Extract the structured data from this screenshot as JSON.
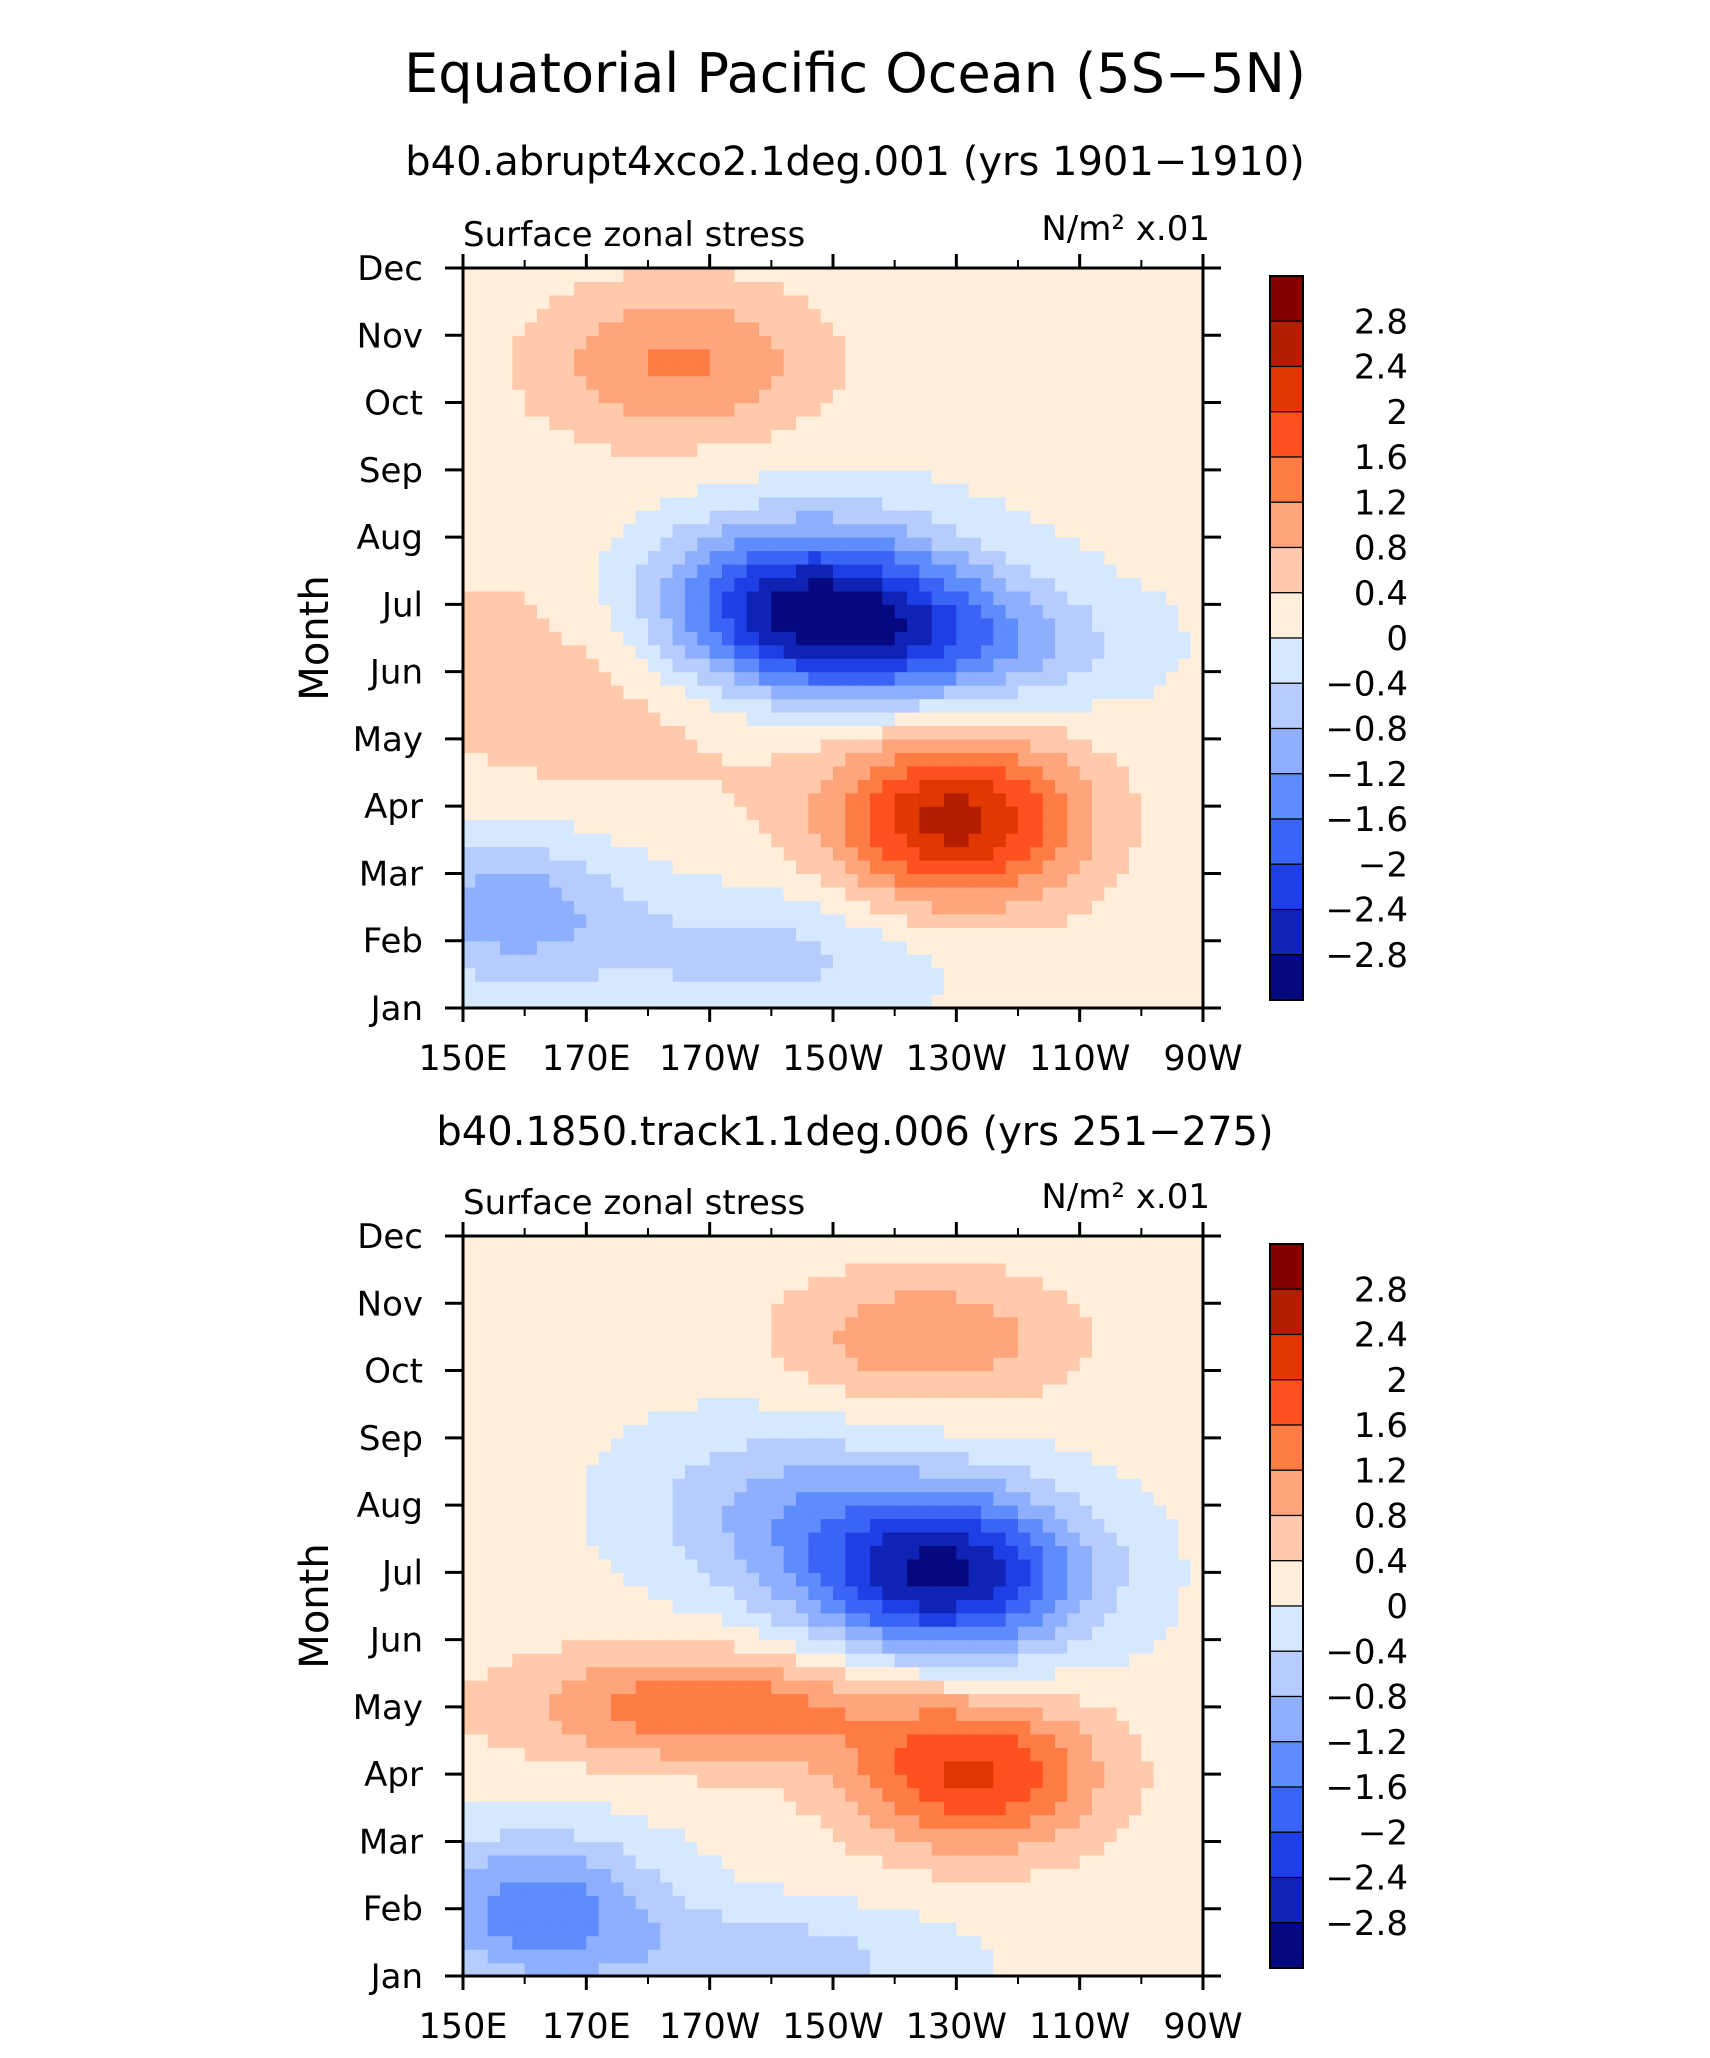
{
  "figure": {
    "title": "Equatorial Pacific Ocean (5S−5N)"
  },
  "chart_data": [
    {
      "type": "heatmap",
      "subtitle": "b40.abrupt4xco2.1deg.001 (yrs 1901−1910)",
      "left_label": "Surface zonal stress",
      "units_label": "N/m² x.01",
      "ylabel": "Month",
      "x_ticks": [
        "150E",
        "170E",
        "170W",
        "150W",
        "130W",
        "110W",
        "90W"
      ],
      "y_ticks": [
        "Jan",
        "Feb",
        "Mar",
        "Apr",
        "May",
        "Jun",
        "Jul",
        "Aug",
        "Sep",
        "Oct",
        "Nov",
        "Dec"
      ],
      "xlim": [
        150,
        270
      ],
      "ylim": [
        1,
        12
      ],
      "features": [
        {
          "lon": 205,
          "month": 7.0,
          "amp": -2.9,
          "sx": 18,
          "sy": 0.9
        },
        {
          "lon": 225,
          "month": 6.4,
          "amp": -1.4,
          "sx": 20,
          "sy": 0.7
        },
        {
          "lon": 230,
          "month": 3.8,
          "amp": 2.4,
          "sx": 14,
          "sy": 0.9
        },
        {
          "lon": 185,
          "month": 10.6,
          "amp": 1.1,
          "sx": 16,
          "sy": 0.8
        },
        {
          "lon": 157,
          "month": 2.5,
          "amp": -1.2,
          "sx": 14,
          "sy": 0.8
        },
        {
          "lon": 200,
          "month": 1.8,
          "amp": -0.7,
          "sx": 20,
          "sy": 0.7
        },
        {
          "lon": 175,
          "month": 6.0,
          "amp": 0.6,
          "sx": 26,
          "sy": 1.4
        }
      ]
    },
    {
      "type": "heatmap",
      "subtitle": "b40.1850.track1.1deg.006 (yrs 251−275)",
      "left_label": "Surface zonal stress",
      "units_label": "N/m² x.01",
      "ylabel": "Month",
      "x_ticks": [
        "150E",
        "170E",
        "170W",
        "150W",
        "130W",
        "110W",
        "90W"
      ],
      "y_ticks": [
        "Jan",
        "Feb",
        "Mar",
        "Apr",
        "May",
        "Jun",
        "Jul",
        "Aug",
        "Sep",
        "Oct",
        "Nov",
        "Dec"
      ],
      "xlim": [
        150,
        270
      ],
      "ylim": [
        1,
        12
      ],
      "features": [
        {
          "lon": 228,
          "month": 7.0,
          "amp": -3.0,
          "sx": 16,
          "sy": 0.9
        },
        {
          "lon": 200,
          "month": 8.0,
          "amp": -0.9,
          "sx": 16,
          "sy": 0.9
        },
        {
          "lon": 190,
          "month": 5.0,
          "amp": 1.4,
          "sx": 22,
          "sy": 0.6
        },
        {
          "lon": 233,
          "month": 4.0,
          "amp": 1.9,
          "sx": 14,
          "sy": 0.8
        },
        {
          "lon": 225,
          "month": 10.5,
          "amp": 1.0,
          "sx": 16,
          "sy": 0.7
        },
        {
          "lon": 162,
          "month": 2.0,
          "amp": -1.6,
          "sx": 14,
          "sy": 0.8
        },
        {
          "lon": 200,
          "month": 1.2,
          "amp": -0.8,
          "sx": 20,
          "sy": 0.6
        }
      ]
    }
  ],
  "colorbar": {
    "labels": [
      "2.8",
      "2.4",
      "2",
      "1.6",
      "1.2",
      "0.8",
      "0.4",
      "0",
      "−0.4",
      "−0.8",
      "−1.2",
      "−1.6",
      "−2",
      "−2.4",
      "−2.8"
    ],
    "colors": [
      "#820000",
      "#b41e00",
      "#e13700",
      "#ff5020",
      "#ff7c45",
      "#ffa57c",
      "#ffc9ab",
      "#ffeedc",
      "#d6e8fd",
      "#b6ccfd",
      "#8daffd",
      "#5f8cfc",
      "#3a64f5",
      "#1e3ee6",
      "#0f23b4",
      "#05087e"
    ]
  }
}
